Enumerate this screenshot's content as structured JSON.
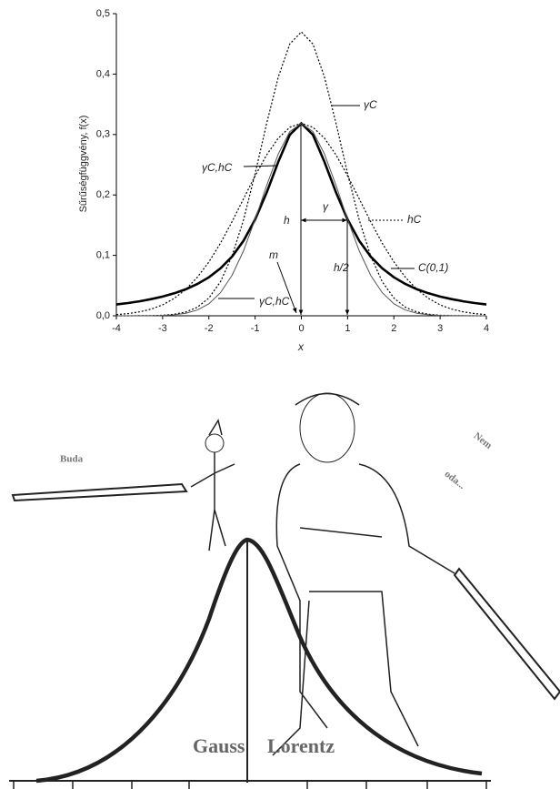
{
  "chart_data": {
    "type": "line",
    "y_label": "Sűrűségfüggvény,  f(x)",
    "x_label": "x",
    "xlim": [
      -4,
      4
    ],
    "ylim": [
      0,
      0.5
    ],
    "xticks": [
      -4,
      -3,
      -2,
      -1,
      0,
      1,
      2,
      3,
      4
    ],
    "yticks": [
      {
        "value": 0,
        "label": "0,0"
      },
      {
        "value": 0.1,
        "label": "0,1"
      },
      {
        "value": 0.2,
        "label": "0,2"
      },
      {
        "value": 0.3,
        "label": "0,3"
      },
      {
        "value": 0.4,
        "label": "0,4"
      },
      {
        "value": 0.5,
        "label": "0,5"
      }
    ],
    "x": [
      -4,
      -3.75,
      -3.5,
      -3.25,
      -3,
      -2.75,
      -2.5,
      -2.25,
      -2,
      -1.75,
      -1.5,
      -1.25,
      -1,
      -0.75,
      -0.5,
      -0.25,
      0,
      0.25,
      0.5,
      0.75,
      1,
      1.25,
      1.5,
      1.75,
      2,
      2.25,
      2.5,
      2.75,
      3,
      3.25,
      3.5,
      3.75,
      4
    ],
    "series": [
      {
        "name": "C(0,1)",
        "color": "#000",
        "style": "solid",
        "width": 2.6,
        "values": [
          0.0187,
          0.0211,
          0.024,
          0.0275,
          0.0318,
          0.0372,
          0.0439,
          0.0526,
          0.0637,
          0.0784,
          0.0979,
          0.1242,
          0.1592,
          0.2037,
          0.2546,
          0.2996,
          0.3183,
          0.2996,
          0.2546,
          0.2037,
          0.1592,
          0.1242,
          0.0979,
          0.0784,
          0.0637,
          0.0526,
          0.0439,
          0.0372,
          0.0318,
          0.0275,
          0.024,
          0.0211,
          0.0187
        ]
      },
      {
        "name": "γC",
        "color": "#000",
        "style": "dotted",
        "width": 1.2,
        "values": [
          0,
          0,
          0.0001,
          0.0003,
          0.0009,
          0.0025,
          0.0062,
          0.014,
          0.0294,
          0.0563,
          0.0987,
          0.1589,
          0.2349,
          0.318,
          0.395,
          0.4498,
          0.4697,
          0.4498,
          0.395,
          0.318,
          0.2349,
          0.1589,
          0.0987,
          0.0563,
          0.0294,
          0.014,
          0.0062,
          0.0025,
          0.0009,
          0.0003,
          0.0001,
          0,
          0
        ]
      },
      {
        "name": "hC",
        "color": "#000",
        "style": "dotted",
        "width": 1.2,
        "values": [
          0.002,
          0.0036,
          0.0065,
          0.011,
          0.0181,
          0.0287,
          0.0435,
          0.0635,
          0.0891,
          0.1201,
          0.1555,
          0.1936,
          0.2315,
          0.2661,
          0.294,
          0.312,
          0.3183,
          0.312,
          0.294,
          0.2661,
          0.2315,
          0.1936,
          0.1555,
          0.1201,
          0.0891,
          0.0635,
          0.0435,
          0.0287,
          0.0181,
          0.011,
          0.0065,
          0.0036,
          0.002
        ]
      },
      {
        "name": "γC,hC",
        "color": "#555",
        "style": "solid",
        "width": 1,
        "values": [
          0,
          0,
          0.0001,
          0.0002,
          0.0006,
          0.0017,
          0.0042,
          0.0095,
          0.0199,
          0.0382,
          0.0669,
          0.1077,
          0.1592,
          0.2155,
          0.2677,
          0.3048,
          0.3183,
          0.3048,
          0.2677,
          0.2155,
          0.1592,
          0.1077,
          0.0669,
          0.0382,
          0.0199,
          0.0095,
          0.0042,
          0.0017,
          0.0006,
          0.0002,
          0.0001,
          0,
          0
        ]
      }
    ],
    "annotations": [
      "γC,hC",
      "h",
      "γ",
      "h/2",
      "m"
    ]
  },
  "illustration": {
    "texts": [
      "Buda",
      "Nem",
      "oda...",
      "Gauss",
      "Lorentz"
    ]
  }
}
